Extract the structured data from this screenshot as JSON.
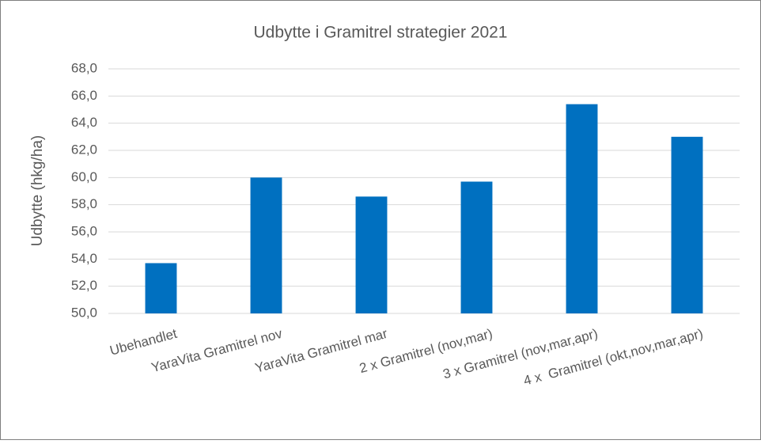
{
  "chart_data": {
    "type": "bar",
    "title": "Udbytte i Gramitrel strategier 2021",
    "y_label": "Udbytte (hkg/ha)",
    "categories": [
      "Ubehandlet",
      "YaraVita Gramitrel nov",
      "YaraVita Gramitrel mar",
      "2 x Gramitrel (nov,mar)",
      "3 x Gramitrel (nov,mar,apr)",
      "4 x  Gramitrel (okt,nov,mar,apr)"
    ],
    "values": [
      53.7,
      60.0,
      58.6,
      59.7,
      65.4,
      63.0
    ],
    "color": "#0070c0",
    "ylim": [
      50,
      68
    ],
    "yticks": [
      {
        "value": 50,
        "label": "50,0"
      },
      {
        "value": 52,
        "label": "52,0"
      },
      {
        "value": 54,
        "label": "54,0"
      },
      {
        "value": 56,
        "label": "56,0"
      },
      {
        "value": 58,
        "label": "58,0"
      },
      {
        "value": 60,
        "label": "60,0"
      },
      {
        "value": 62,
        "label": "62,0"
      },
      {
        "value": 64,
        "label": "64,0"
      },
      {
        "value": 66,
        "label": "66,0"
      },
      {
        "value": 68,
        "label": "68,0"
      }
    ],
    "grid": true
  }
}
